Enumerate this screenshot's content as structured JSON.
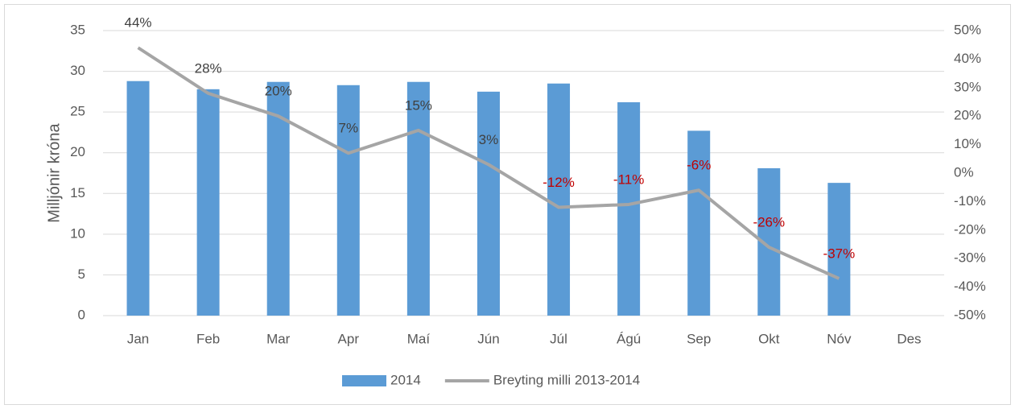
{
  "chart_data": {
    "type": "bar-line",
    "y_label": "Milljónir króna",
    "categories": [
      "Jan",
      "Feb",
      "Mar",
      "Apr",
      "Maí",
      "Jún",
      "Júl",
      "Ágú",
      "Sep",
      "Okt",
      "Nóv",
      "Des"
    ],
    "series": [
      {
        "name": "2014",
        "type": "bar",
        "color": "#5b9bd5",
        "values": [
          28.8,
          27.8,
          28.7,
          28.3,
          28.7,
          27.5,
          28.5,
          26.2,
          22.7,
          18.1,
          16.3,
          null
        ]
      },
      {
        "name": "Breyting milli 2013-2014",
        "type": "line",
        "axis": "y2",
        "color": "#a5a5a5",
        "label_color": "#404040",
        "negative_label_color": "#c00000",
        "values": [
          44,
          28,
          20,
          7,
          15,
          3,
          -12,
          -11,
          -6,
          -26,
          -37,
          null
        ],
        "value_labels": [
          "44%",
          "28%",
          "20%",
          "7%",
          "15%",
          "3%",
          "-12%",
          "-11%",
          "-6%",
          "-26%",
          "-37%",
          null
        ]
      }
    ],
    "ylim": [
      0,
      35
    ],
    "yticks": [
      0,
      5,
      10,
      15,
      20,
      25,
      30,
      35
    ],
    "y2lim": [
      -50,
      50
    ],
    "y2ticks": [
      {
        "value": -50,
        "label": "-50%"
      },
      {
        "value": -40,
        "label": "-40%"
      },
      {
        "value": -30,
        "label": "-30%"
      },
      {
        "value": -20,
        "label": "-20%"
      },
      {
        "value": -10,
        "label": "-10%"
      },
      {
        "value": 0,
        "label": "0%"
      },
      {
        "value": 10,
        "label": "10%"
      },
      {
        "value": 20,
        "label": "20%"
      },
      {
        "value": 30,
        "label": "30%"
      },
      {
        "value": 40,
        "label": "40%"
      },
      {
        "value": 50,
        "label": "50%"
      }
    ],
    "grid": true,
    "legend": "bottom"
  }
}
